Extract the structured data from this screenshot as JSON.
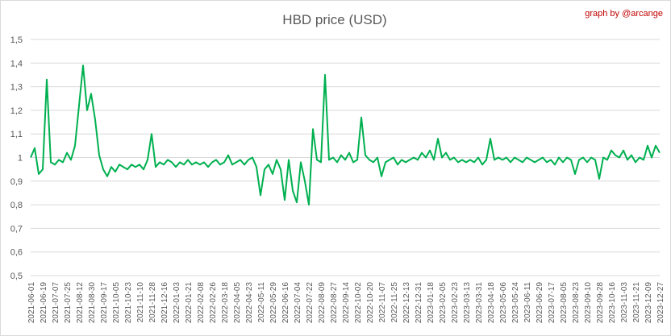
{
  "chart_data": {
    "type": "line",
    "title": "HBD price (USD)",
    "annotation": "graph by @arcange",
    "categories": [
      "2021-06-01",
      null,
      null,
      "2021-06-19",
      null,
      null,
      "2021-07-07",
      null,
      null,
      "2021-07-25",
      null,
      null,
      "2021-08-12",
      null,
      null,
      "2021-08-30",
      null,
      null,
      "2021-09-17",
      null,
      null,
      "2021-10-05",
      null,
      null,
      "2021-10-23",
      null,
      null,
      "2021-11-10",
      null,
      null,
      "2021-11-28",
      null,
      null,
      "2021-12-16",
      null,
      null,
      "2022-01-03",
      null,
      null,
      "2022-01-21",
      null,
      null,
      "2022-02-08",
      null,
      null,
      "2022-02-26",
      null,
      null,
      "2022-03-18",
      null,
      null,
      "2022-04-05",
      null,
      null,
      "2022-04-23",
      null,
      null,
      "2022-05-11",
      null,
      null,
      "2022-05-29",
      null,
      null,
      "2022-06-16",
      null,
      null,
      "2022-07-04",
      null,
      null,
      "2022-07-22",
      null,
      null,
      "2022-08-09",
      null,
      null,
      "2022-08-27",
      null,
      null,
      "2022-09-14",
      null,
      null,
      "2022-10-02",
      null,
      null,
      "2022-10-20",
      null,
      null,
      "2022-11-07",
      null,
      null,
      "2022-11-25",
      null,
      null,
      "2022-12-13",
      null,
      null,
      "2022-12-31",
      null,
      null,
      "2023-01-18",
      null,
      null,
      "2023-02-05",
      null,
      null,
      "2023-02-23",
      null,
      null,
      "2023-03-13",
      null,
      null,
      "2023-03-31",
      null,
      null,
      "2023-04-18",
      null,
      null,
      "2023-05-06",
      null,
      null,
      "2023-05-24",
      null,
      null,
      "2023-06-11",
      null,
      null,
      "2023-06-29",
      null,
      null,
      "2023-07-17",
      null,
      null,
      "2023-08-05",
      null,
      null,
      "2023-08-23",
      null,
      null,
      "2023-09-10",
      null,
      null,
      "2023-09-28",
      null,
      null,
      "2023-10-16",
      null,
      null,
      "2023-11-03",
      null,
      null,
      "2023-11-21",
      null,
      null,
      "2023-12-09",
      null,
      null,
      "2023-12-27"
    ],
    "series": [
      {
        "name": "HBD price (USD)",
        "color": "#00b050",
        "values": [
          1.0,
          1.04,
          0.93,
          0.95,
          1.33,
          0.98,
          0.97,
          0.99,
          0.98,
          1.02,
          0.99,
          1.05,
          1.22,
          1.39,
          1.2,
          1.27,
          1.16,
          1.01,
          0.95,
          0.92,
          0.96,
          0.94,
          0.97,
          0.96,
          0.95,
          0.97,
          0.96,
          0.97,
          0.95,
          0.99,
          1.1,
          0.96,
          0.98,
          0.97,
          0.99,
          0.98,
          0.96,
          0.98,
          0.97,
          0.99,
          0.97,
          0.98,
          0.97,
          0.98,
          0.96,
          0.98,
          0.99,
          0.97,
          0.98,
          1.01,
          0.97,
          0.98,
          0.99,
          0.97,
          0.99,
          1.0,
          0.96,
          0.84,
          0.95,
          0.97,
          0.93,
          0.99,
          0.95,
          0.82,
          0.99,
          0.86,
          0.81,
          0.98,
          0.9,
          0.8,
          1.12,
          0.99,
          0.98,
          1.35,
          0.99,
          1.0,
          0.98,
          1.01,
          0.99,
          1.02,
          0.98,
          0.99,
          1.17,
          1.01,
          0.99,
          0.98,
          1.0,
          0.92,
          0.98,
          0.99,
          1.0,
          0.97,
          0.99,
          0.98,
          0.99,
          1.0,
          0.99,
          1.02,
          1.0,
          1.03,
          0.99,
          1.08,
          1.0,
          1.02,
          0.99,
          1.0,
          0.98,
          0.99,
          0.98,
          0.99,
          0.98,
          1.0,
          0.97,
          0.99,
          1.08,
          0.99,
          1.0,
          0.99,
          1.0,
          0.98,
          1.0,
          0.99,
          0.98,
          1.0,
          0.99,
          0.98,
          0.99,
          1.0,
          0.98,
          0.99,
          0.97,
          1.0,
          0.98,
          1.0,
          0.99,
          0.93,
          0.99,
          1.0,
          0.98,
          1.0,
          0.99,
          0.91,
          1.0,
          0.99,
          1.03,
          1.01,
          1.0,
          1.03,
          0.99,
          1.01,
          0.98,
          1.0,
          0.99,
          1.05,
          1.0,
          1.05,
          1.02
        ]
      }
    ],
    "ylim": [
      0.5,
      1.5
    ],
    "yticks": [
      {
        "value": 0.5,
        "label": "0,5"
      },
      {
        "value": 0.6,
        "label": "0,6"
      },
      {
        "value": 0.7,
        "label": "0,7"
      },
      {
        "value": 0.8,
        "label": "0,8"
      },
      {
        "value": 0.9,
        "label": "0,9"
      },
      {
        "value": 1,
        "label": "1"
      },
      {
        "value": 1.1,
        "label": "1,1"
      },
      {
        "value": 1.2,
        "label": "1,2"
      },
      {
        "value": 1.3,
        "label": "1,3"
      },
      {
        "value": 1.4,
        "label": "1,4"
      },
      {
        "value": 1.5,
        "label": "1,5"
      }
    ],
    "grid": true
  }
}
